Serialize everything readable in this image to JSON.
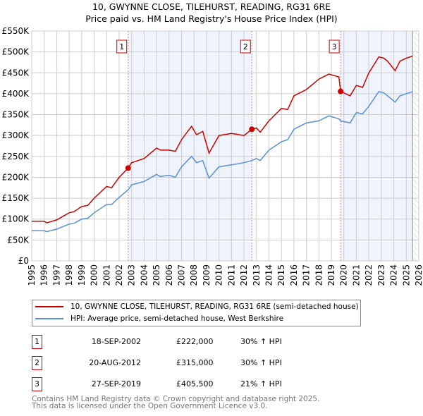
{
  "title_line1": "10, GWYNNE CLOSE, TILEHURST, READING, RG31 6RE",
  "title_line2": "Price paid vs. HM Land Registry's House Price Index (HPI)",
  "legend": {
    "property": "10, GWYNNE CLOSE, TILEHURST, READING, RG31 6RE (semi-detached house)",
    "hpi": "HPI: Average price, semi-detached house, West Berkshire"
  },
  "sales": [
    {
      "num": "1",
      "date": "18-SEP-2002",
      "price": "£222,000",
      "hpi": "30% ↑ HPI"
    },
    {
      "num": "2",
      "date": "20-AUG-2012",
      "price": "£315,000",
      "hpi": "30% ↑ HPI"
    },
    {
      "num": "3",
      "date": "27-SEP-2019",
      "price": "£405,500",
      "hpi": "21% ↑ HPI"
    }
  ],
  "footer": {
    "line1": "Contains HM Land Registry data © Crown copyright and database right 2025.",
    "line2": "This data is licensed under the Open Government Licence v3.0."
  },
  "colors": {
    "property": "#cc0000",
    "hpi": "#5b8fd4",
    "shade": "#eef3fc"
  },
  "chart_data": {
    "type": "line",
    "xlim": [
      1995,
      2026
    ],
    "ylim": [
      0,
      550000
    ],
    "yticks": [
      0,
      50000,
      100000,
      150000,
      200000,
      250000,
      300000,
      350000,
      400000,
      450000,
      500000,
      550000
    ],
    "ytick_labels": [
      "£0",
      "£50K",
      "£100K",
      "£150K",
      "£200K",
      "£250K",
      "£300K",
      "£350K",
      "£400K",
      "£450K",
      "£500K",
      "£550K"
    ],
    "xticks": [
      "1995",
      "1996",
      "1997",
      "1998",
      "1999",
      "2000",
      "2001",
      "2002",
      "2003",
      "2004",
      "2005",
      "2006",
      "2007",
      "2008",
      "2009",
      "2010",
      "2011",
      "2012",
      "2013",
      "2014",
      "2015",
      "2016",
      "2017",
      "2018",
      "2019",
      "2020",
      "2021",
      "2022",
      "2023",
      "2024",
      "2025",
      "2026"
    ],
    "grid": true,
    "series": [
      {
        "name": "10, GWYNNE CLOSE, TILEHURST, READING, RG31 6RE (semi-detached house)",
        "x": [
          1995,
          1996,
          1996.2,
          1997,
          1998,
          1998.4,
          1999,
          1999.5,
          2000,
          2001,
          2001.4,
          2002,
          2002.72,
          2003,
          2004,
          2005,
          2005.3,
          2006,
          2006.5,
          2007,
          2007.8,
          2008.2,
          2008.7,
          2009.2,
          2010,
          2011,
          2012,
          2012.63,
          2013,
          2013.3,
          2014,
          2015,
          2015.5,
          2016,
          2017,
          2018,
          2018.8,
          2019.6,
          2019.74,
          2020.5,
          2021,
          2021.5,
          2022,
          2022.8,
          2023.2,
          2023.5,
          2024.1,
          2024.5,
          2025,
          2025.5
        ],
        "y": [
          95000,
          95000,
          91000,
          98000,
          115000,
          118000,
          130000,
          133000,
          150000,
          178000,
          175000,
          200000,
          222000,
          235000,
          245000,
          270000,
          265000,
          265000,
          262000,
          290000,
          322000,
          302000,
          310000,
          258000,
          300000,
          305000,
          300000,
          315000,
          318000,
          308000,
          335000,
          365000,
          362000,
          395000,
          410000,
          435000,
          447000,
          440000,
          405500,
          395000,
          420000,
          415000,
          450000,
          488000,
          485000,
          478000,
          455000,
          478000,
          485000,
          490000
        ]
      },
      {
        "name": "HPI: Average price, semi-detached house, West Berkshire",
        "x": [
          1995,
          1996,
          1996.2,
          1997,
          1998,
          1998.4,
          1999,
          1999.5,
          2000,
          2001,
          2001.4,
          2002,
          2002.72,
          2003,
          2004,
          2005,
          2005.3,
          2006,
          2006.5,
          2007,
          2007.8,
          2008.2,
          2008.7,
          2009.2,
          2010,
          2011,
          2012,
          2012.63,
          2013,
          2013.3,
          2014,
          2015,
          2015.5,
          2016,
          2017,
          2018,
          2018.8,
          2019.6,
          2019.74,
          2020.5,
          2021,
          2021.5,
          2022,
          2022.8,
          2023.2,
          2023.5,
          2024.1,
          2024.5,
          2025,
          2025.5
        ],
        "y": [
          72000,
          72000,
          70000,
          76000,
          88000,
          90000,
          100000,
          102000,
          115000,
          135000,
          135000,
          152000,
          170000,
          182000,
          190000,
          207000,
          202000,
          205000,
          200000,
          225000,
          250000,
          235000,
          240000,
          198000,
          225000,
          230000,
          235000,
          240000,
          245000,
          240000,
          265000,
          285000,
          290000,
          315000,
          330000,
          335000,
          347000,
          340000,
          335000,
          330000,
          355000,
          352000,
          370000,
          405000,
          402000,
          395000,
          380000,
          395000,
          400000,
          405000
        ]
      }
    ],
    "sales": [
      {
        "label": "1",
        "x": 2002.72,
        "y": 222000
      },
      {
        "label": "2",
        "x": 2012.63,
        "y": 315000
      },
      {
        "label": "3",
        "x": 2019.74,
        "y": 405500
      }
    ],
    "data_end": 2025.5
  }
}
